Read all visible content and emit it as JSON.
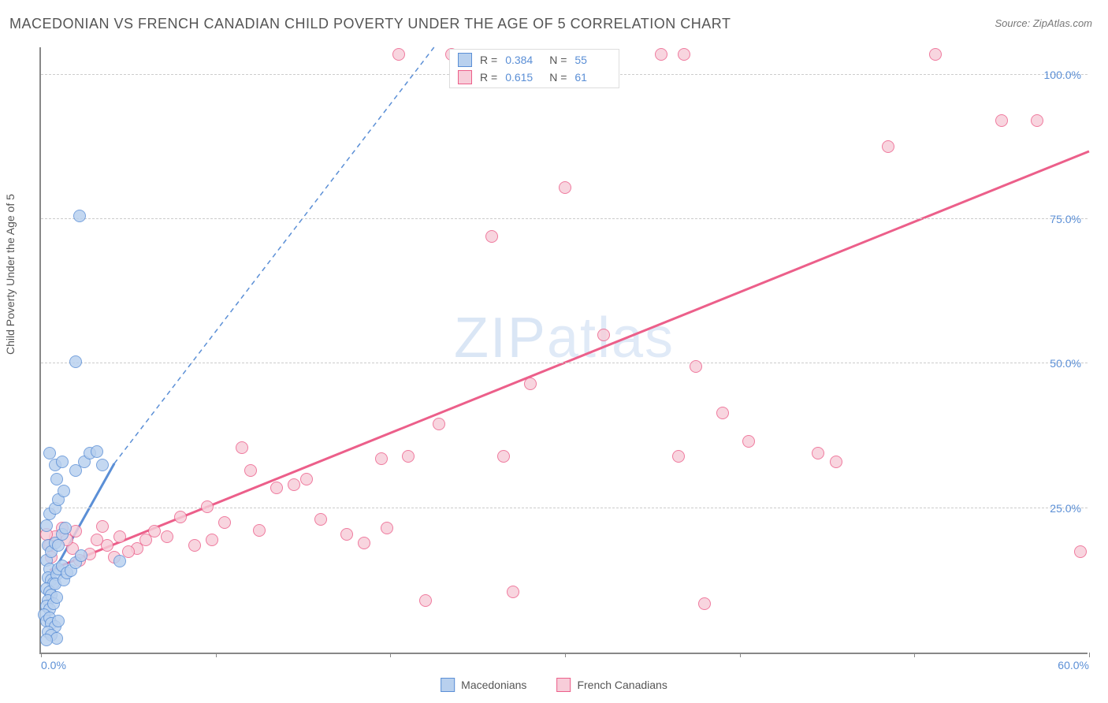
{
  "title": "MACEDONIAN VS FRENCH CANADIAN CHILD POVERTY UNDER THE AGE OF 5 CORRELATION CHART",
  "source": "Source: ZipAtlas.com",
  "ylabel": "Child Poverty Under the Age of 5",
  "watermark_a": "ZIP",
  "watermark_b": "atlas",
  "chart": {
    "type": "scatter",
    "xlim": [
      0,
      60
    ],
    "ylim": [
      0,
      105
    ],
    "xticks": [
      0,
      10,
      20,
      30,
      40,
      50,
      60
    ],
    "xticks_labeled": {
      "0": "0.0%",
      "60": "60.0%"
    },
    "yticks": [
      25,
      50,
      75,
      100
    ],
    "ytick_labels": [
      "25.0%",
      "50.0%",
      "75.0%",
      "100.0%"
    ],
    "grid_color": "#cccccc",
    "axis_color": "#888888",
    "background_color": "#ffffff",
    "label_color_axis": "#5b8fd6",
    "point_radius": 8,
    "point_border_width": 1.5,
    "series": [
      {
        "name": "Macedonians",
        "fill": "#b8d0ee",
        "stroke": "#5b8fd6",
        "R": "0.384",
        "N": "55",
        "trend": {
          "solid": {
            "x1": 0.5,
            "y1": 13,
            "x2": 4.2,
            "y2": 33
          },
          "dashed": {
            "x1": 4.2,
            "y1": 33,
            "x2": 22.5,
            "y2": 105
          }
        },
        "points": [
          [
            2.2,
            75.5
          ],
          [
            2.0,
            50.3
          ],
          [
            0.4,
            18.5
          ],
          [
            0.3,
            16.0
          ],
          [
            0.5,
            14.5
          ],
          [
            0.4,
            13.0
          ],
          [
            0.6,
            12.5
          ],
          [
            0.7,
            12.0
          ],
          [
            0.3,
            11.0
          ],
          [
            0.9,
            13.5
          ],
          [
            0.5,
            10.5
          ],
          [
            0.6,
            10.0
          ],
          [
            1.0,
            14.5
          ],
          [
            1.2,
            15.0
          ],
          [
            0.8,
            11.8
          ],
          [
            0.4,
            9.0
          ],
          [
            0.3,
            8.0
          ],
          [
            0.5,
            7.5
          ],
          [
            0.7,
            8.5
          ],
          [
            0.9,
            9.5
          ],
          [
            0.2,
            6.5
          ],
          [
            0.3,
            5.5
          ],
          [
            0.5,
            6.0
          ],
          [
            0.6,
            5.0
          ],
          [
            0.8,
            4.5
          ],
          [
            1.0,
            5.5
          ],
          [
            0.4,
            3.5
          ],
          [
            0.6,
            3.0
          ],
          [
            0.9,
            2.5
          ],
          [
            0.3,
            2.2
          ],
          [
            1.3,
            12.5
          ],
          [
            1.5,
            13.8
          ],
          [
            1.7,
            14.2
          ],
          [
            2.0,
            15.5
          ],
          [
            2.3,
            16.8
          ],
          [
            0.6,
            17.5
          ],
          [
            0.8,
            19.0
          ],
          [
            1.0,
            18.5
          ],
          [
            1.2,
            20.5
          ],
          [
            1.4,
            21.5
          ],
          [
            0.3,
            22.0
          ],
          [
            0.5,
            24.0
          ],
          [
            0.8,
            25.0
          ],
          [
            1.0,
            26.5
          ],
          [
            1.3,
            28.0
          ],
          [
            2.5,
            33.0
          ],
          [
            2.8,
            34.5
          ],
          [
            3.2,
            34.8
          ],
          [
            3.5,
            32.5
          ],
          [
            4.5,
            15.8
          ],
          [
            0.5,
            34.5
          ],
          [
            0.8,
            32.5
          ],
          [
            1.2,
            33.0
          ],
          [
            2.0,
            31.5
          ],
          [
            0.9,
            30.0
          ]
        ]
      },
      {
        "name": "French Canadians",
        "fill": "#f7cdd9",
        "stroke": "#ec5f8a",
        "R": "0.615",
        "N": "61",
        "trend": {
          "solid": {
            "x1": 0.5,
            "y1": 14.5,
            "x2": 60,
            "y2": 87
          }
        },
        "points": [
          [
            20.5,
            103.5
          ],
          [
            23.5,
            103.5
          ],
          [
            35.5,
            103.5
          ],
          [
            36.8,
            103.5
          ],
          [
            51.2,
            103.5
          ],
          [
            55.0,
            92.0
          ],
          [
            57.0,
            92.0
          ],
          [
            48.5,
            87.5
          ],
          [
            30.0,
            80.5
          ],
          [
            25.8,
            72.0
          ],
          [
            32.2,
            55.0
          ],
          [
            37.5,
            49.5
          ],
          [
            39.0,
            41.5
          ],
          [
            28.0,
            46.5
          ],
          [
            22.8,
            39.5
          ],
          [
            38.0,
            8.5
          ],
          [
            22.0,
            9.0
          ],
          [
            27.0,
            10.5
          ],
          [
            59.5,
            17.5
          ],
          [
            44.5,
            34.5
          ],
          [
            45.5,
            33.0
          ],
          [
            40.5,
            36.5
          ],
          [
            36.5,
            34.0
          ],
          [
            26.5,
            34.0
          ],
          [
            19.5,
            33.5
          ],
          [
            19.8,
            21.5
          ],
          [
            21.0,
            34.0
          ],
          [
            15.2,
            30.0
          ],
          [
            12.0,
            31.5
          ],
          [
            11.5,
            35.5
          ],
          [
            13.5,
            28.5
          ],
          [
            14.5,
            29.0
          ],
          [
            16.0,
            23.0
          ],
          [
            17.5,
            20.5
          ],
          [
            18.5,
            19.0
          ],
          [
            9.5,
            25.2
          ],
          [
            10.5,
            22.5
          ],
          [
            12.5,
            21.2
          ],
          [
            8.0,
            23.5
          ],
          [
            8.8,
            18.5
          ],
          [
            9.8,
            19.5
          ],
          [
            6.5,
            21.0
          ],
          [
            7.2,
            20.0
          ],
          [
            5.5,
            18.0
          ],
          [
            6.0,
            19.5
          ],
          [
            4.5,
            20.0
          ],
          [
            5.0,
            17.5
          ],
          [
            3.8,
            18.5
          ],
          [
            4.2,
            16.5
          ],
          [
            3.2,
            19.5
          ],
          [
            2.8,
            17.0
          ],
          [
            2.2,
            16.0
          ],
          [
            1.8,
            18.0
          ],
          [
            1.5,
            19.5
          ],
          [
            1.2,
            21.5
          ],
          [
            0.8,
            20.0
          ],
          [
            0.5,
            18.5
          ],
          [
            0.3,
            20.5
          ],
          [
            0.6,
            16.5
          ],
          [
            2.0,
            21.0
          ],
          [
            3.5,
            21.8
          ]
        ]
      }
    ]
  },
  "legend_bottom": [
    {
      "label": "Macedonians",
      "fill": "#b8d0ee",
      "stroke": "#5b8fd6"
    },
    {
      "label": "French Canadians",
      "fill": "#f7cdd9",
      "stroke": "#ec5f8a"
    }
  ]
}
